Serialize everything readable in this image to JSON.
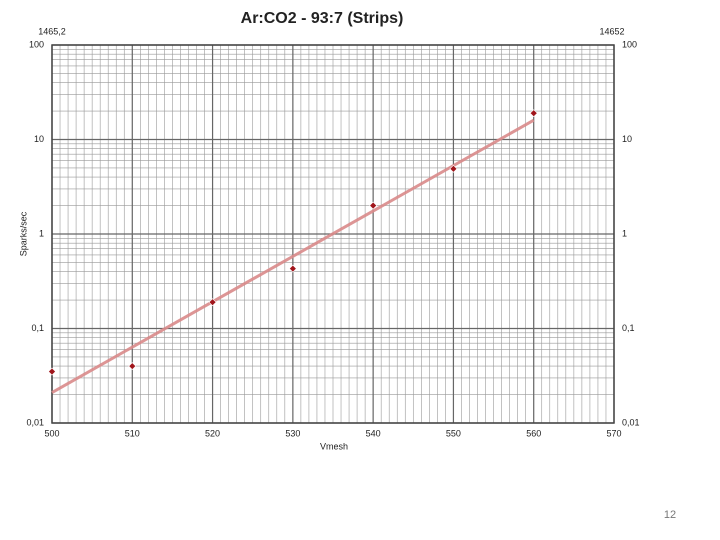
{
  "chart_data": {
    "type": "scatter",
    "title": "Ar:CO2 - 93:7 (Strips)",
    "annotations": [
      "1465,2",
      "14652"
    ],
    "x_label": "Vmesh",
    "y_label": "Sparks/sec",
    "x": [
      500,
      510,
      520,
      530,
      540,
      550,
      560
    ],
    "values": [
      0.035,
      0.04,
      0.19,
      0.43,
      2.0,
      4.9,
      19
    ],
    "color": "#a0151b",
    "trendline": {
      "x": [
        500,
        560
      ],
      "values": [
        0.021,
        16
      ],
      "color": "#d98a8a"
    },
    "xlim": [
      500,
      570
    ],
    "xticks": [
      500,
      510,
      520,
      530,
      540,
      550,
      560,
      570
    ],
    "ylim": [
      0.01,
      100
    ],
    "log_y": true,
    "yticks": [
      {
        "value": 0.01,
        "label": "0,01"
      },
      {
        "value": 0.1,
        "label": "0,1"
      },
      1,
      10,
      100
    ],
    "grid": true
  },
  "page_number": "12"
}
